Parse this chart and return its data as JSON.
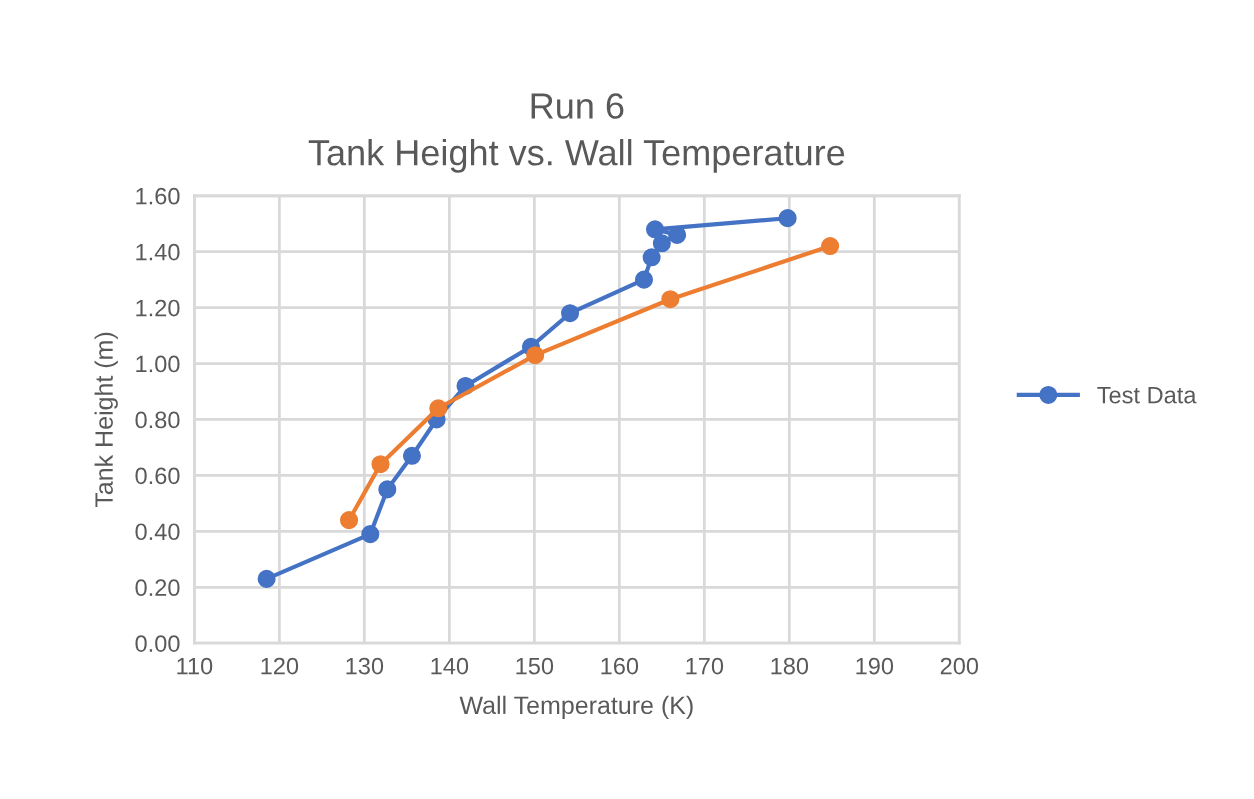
{
  "chart_data": {
    "type": "line",
    "title": "Run 6\nTank Height vs. Wall Temperature",
    "xlabel": "Wall Temperature (K)",
    "ylabel": "Tank Height (m)",
    "xlim": [
      110,
      200
    ],
    "xticks": [
      110,
      120,
      130,
      140,
      150,
      160,
      170,
      180,
      190,
      200
    ],
    "ylim": [
      0,
      1.6
    ],
    "yticks": [
      {
        "value": 0,
        "label": "0.00"
      },
      {
        "value": 0.2,
        "label": "0.20"
      },
      {
        "value": 0.4,
        "label": "0.40"
      },
      {
        "value": 0.6,
        "label": "0.60"
      },
      {
        "value": 0.8,
        "label": "0.80"
      },
      {
        "value": 1.0,
        "label": "1.00"
      },
      {
        "value": 1.2,
        "label": "1.20"
      },
      {
        "value": 1.4,
        "label": "1.40"
      },
      {
        "value": 1.6,
        "label": "1.60"
      }
    ],
    "grid": true,
    "legend": "right",
    "marker": "circle",
    "series": [
      {
        "name": "Test Data",
        "color": "#4472c4",
        "x": [
          118.5,
          130.7,
          132.7,
          135.6,
          138.5,
          141.9,
          149.6,
          154.2,
          162.9,
          163.8,
          165.0,
          166.8,
          164.2,
          179.8
        ],
        "values": [
          0.23,
          0.39,
          0.55,
          0.67,
          0.8,
          0.92,
          1.06,
          1.18,
          1.3,
          1.38,
          1.43,
          1.46,
          1.48,
          1.52
        ]
      },
      {
        "color": "#ed7d31",
        "x": [
          128.2,
          131.9,
          138.7,
          150.1,
          166.0,
          184.8
        ],
        "values": [
          0.44,
          0.64,
          0.84,
          1.03,
          1.23,
          1.42
        ]
      }
    ]
  }
}
